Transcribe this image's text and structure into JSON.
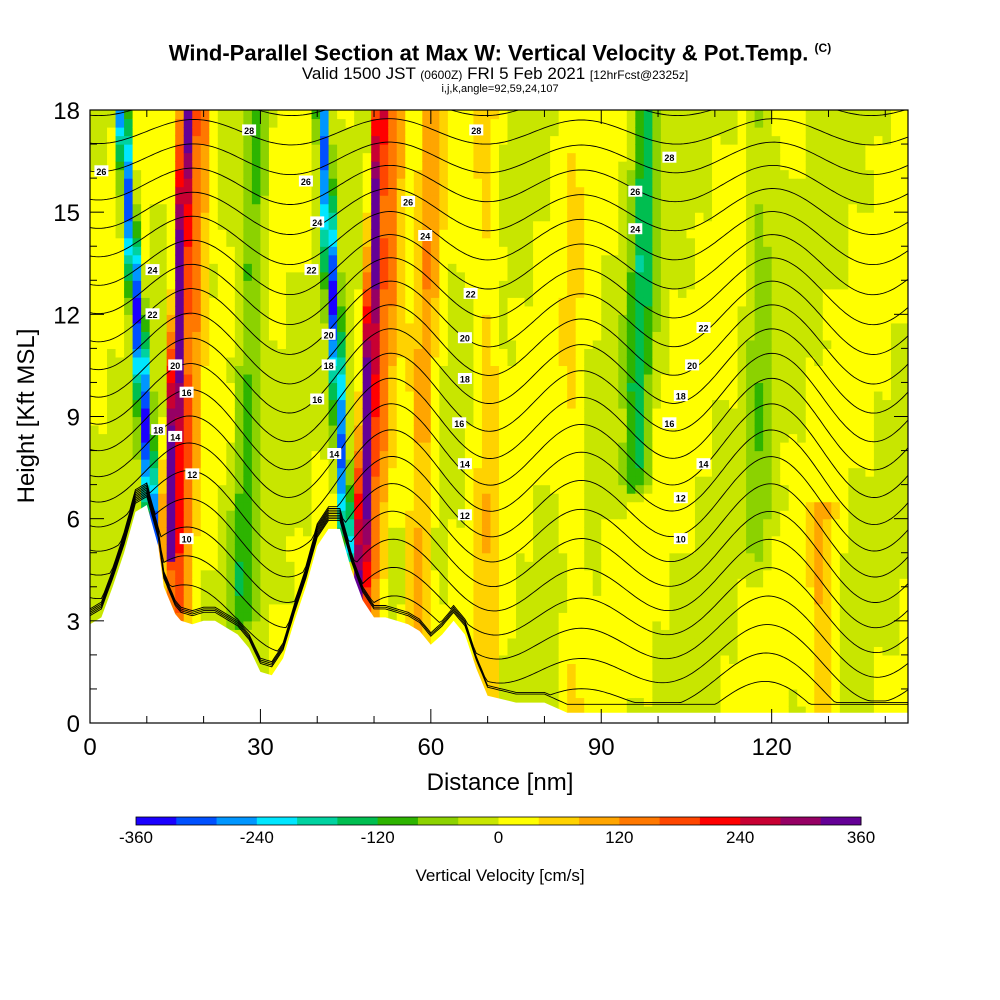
{
  "header": {
    "title_main": "Wind-Parallel Section at Max W: Vertical Velocity & Pot.Temp.",
    "title_mark": "(C)",
    "valid_a": "Valid 1500 JST",
    "valid_b": "(0600Z)",
    "valid_c": "FRI 5 Feb 2021",
    "valid_d": "[12hrFcst@2325z]",
    "params": "i,j,k,angle=92,59,24,107"
  },
  "chart_data": {
    "type": "heatmap",
    "title": "Wind-Parallel Section at Max W: Vertical Velocity & Pot.Temp.",
    "xlabel": "Distance [nm]",
    "ylabel": "Height [Kft MSL]",
    "xlim": [
      0,
      144
    ],
    "ylim": [
      0,
      18
    ],
    "x_ticks": [
      0,
      30,
      60,
      90,
      120
    ],
    "y_ticks": [
      0,
      3,
      6,
      9,
      12,
      15,
      18
    ],
    "colorbar": {
      "label": "Vertical Velocity [cm/s]",
      "min": -360,
      "max": 360,
      "step": 40,
      "tick_labels": [
        "-360",
        "-240",
        "-120",
        "0",
        "120",
        "240",
        "360"
      ],
      "colors": [
        "#1a00ff",
        "#0050ff",
        "#0096ff",
        "#00e6ff",
        "#00d2a0",
        "#00be50",
        "#2db400",
        "#8cd200",
        "#c8e600",
        "#ffff00",
        "#ffd200",
        "#ffa500",
        "#ff7800",
        "#ff4600",
        "#ff0000",
        "#c80032",
        "#960064",
        "#640096"
      ]
    },
    "terrain_profile": [
      [
        0,
        2.9
      ],
      [
        2,
        3.1
      ],
      [
        4,
        4.0
      ],
      [
        6,
        5.0
      ],
      [
        8,
        6.2
      ],
      [
        10,
        6.4
      ],
      [
        12,
        5.2
      ],
      [
        13,
        4.0
      ],
      [
        14,
        3.6
      ],
      [
        15,
        3.2
      ],
      [
        16,
        3.0
      ],
      [
        18,
        2.9
      ],
      [
        20,
        3.0
      ],
      [
        22,
        3.0
      ],
      [
        24,
        2.8
      ],
      [
        26,
        2.6
      ],
      [
        28,
        2.2
      ],
      [
        30,
        1.5
      ],
      [
        32,
        1.4
      ],
      [
        34,
        1.9
      ],
      [
        36,
        3.0
      ],
      [
        38,
        4.0
      ],
      [
        40,
        5.2
      ],
      [
        42,
        5.7
      ],
      [
        44,
        5.7
      ],
      [
        46,
        4.5
      ],
      [
        48,
        3.6
      ],
      [
        50,
        3.1
      ],
      [
        52,
        3.1
      ],
      [
        54,
        3.0
      ],
      [
        56,
        2.9
      ],
      [
        58,
        2.7
      ],
      [
        60,
        2.3
      ],
      [
        62,
        2.6
      ],
      [
        64,
        3.0
      ],
      [
        66,
        2.6
      ],
      [
        68,
        1.6
      ],
      [
        70,
        0.8
      ],
      [
        75,
        0.6
      ],
      [
        80,
        0.6
      ],
      [
        84,
        0.3
      ],
      [
        90,
        0.3
      ],
      [
        100,
        0.3
      ],
      [
        110,
        0.3
      ],
      [
        120,
        0.3
      ],
      [
        130,
        0.3
      ],
      [
        140,
        0.3
      ],
      [
        144,
        0.3
      ]
    ],
    "velocity_features": [
      {
        "x": 11,
        "z_min": 5,
        "z_max": 18,
        "tilt_nm_per_kft": -0.45,
        "w": -320
      },
      {
        "x": 14,
        "z_min": 5,
        "z_max": 18,
        "tilt_nm_per_kft": 0.25,
        "w": 340
      },
      {
        "x": 16,
        "z_min": 3,
        "z_max": 18,
        "tilt_nm_per_kft": 0.3,
        "w": 160
      },
      {
        "x": 27,
        "z_min": 3,
        "z_max": 18,
        "tilt_nm_per_kft": 0.2,
        "w": -100
      },
      {
        "x": 45,
        "z_min": 5,
        "z_max": 18,
        "tilt_nm_per_kft": -0.35,
        "w": -300
      },
      {
        "x": 48,
        "z_min": 3,
        "z_max": 18,
        "tilt_nm_per_kft": 0.25,
        "w": 320
      },
      {
        "x": 50,
        "z_min": 3,
        "z_max": 18,
        "tilt_nm_per_kft": 0.3,
        "w": 140
      },
      {
        "x": 58,
        "z_min": 2,
        "z_max": 18,
        "tilt_nm_per_kft": 0.2,
        "w": 100
      },
      {
        "x": 96,
        "z_min": 7,
        "z_max": 18,
        "tilt_nm_per_kft": 0.15,
        "w": -140
      },
      {
        "x": 70,
        "z_min": 0,
        "z_max": 18,
        "tilt_nm_per_kft": 0,
        "w": 60
      },
      {
        "x": 85,
        "z_min": 0,
        "z_max": 18,
        "tilt_nm_per_kft": 0,
        "w": 40
      },
      {
        "x": 129,
        "z_min": 0,
        "z_max": 6,
        "tilt_nm_per_kft": 0,
        "w": 80
      },
      {
        "x": 118,
        "z_min": 5,
        "z_max": 18,
        "tilt_nm_per_kft": 0,
        "w": -60
      }
    ],
    "isentrope_labels": [
      {
        "text": "26",
        "x": 2,
        "z": 16.2
      },
      {
        "text": "28",
        "x": 28,
        "z": 17.4
      },
      {
        "text": "26",
        "x": 38,
        "z": 15.9
      },
      {
        "text": "26",
        "x": 56,
        "z": 15.3
      },
      {
        "text": "28",
        "x": 68,
        "z": 17.4
      },
      {
        "text": "28",
        "x": 102,
        "z": 16.6
      },
      {
        "text": "26",
        "x": 96,
        "z": 15.6
      },
      {
        "text": "24",
        "x": 40,
        "z": 14.7
      },
      {
        "text": "24",
        "x": 59,
        "z": 14.3
      },
      {
        "text": "24",
        "x": 96,
        "z": 14.5
      },
      {
        "text": "24",
        "x": 11,
        "z": 13.3
      },
      {
        "text": "22",
        "x": 39,
        "z": 13.3
      },
      {
        "text": "22",
        "x": 67,
        "z": 12.6
      },
      {
        "text": "22",
        "x": 108,
        "z": 11.6
      },
      {
        "text": "22",
        "x": 11,
        "z": 12.0
      },
      {
        "text": "20",
        "x": 42,
        "z": 11.4
      },
      {
        "text": "20",
        "x": 66,
        "z": 11.3
      },
      {
        "text": "20",
        "x": 106,
        "z": 10.5
      },
      {
        "text": "20",
        "x": 15,
        "z": 10.5
      },
      {
        "text": "18",
        "x": 42,
        "z": 10.5
      },
      {
        "text": "18",
        "x": 66,
        "z": 10.1
      },
      {
        "text": "18",
        "x": 104,
        "z": 9.6
      },
      {
        "text": "16",
        "x": 17,
        "z": 9.7
      },
      {
        "text": "16",
        "x": 40,
        "z": 9.5
      },
      {
        "text": "16",
        "x": 65,
        "z": 8.8
      },
      {
        "text": "16",
        "x": 102,
        "z": 8.8
      },
      {
        "text": "18",
        "x": 12,
        "z": 8.6
      },
      {
        "text": "14",
        "x": 15,
        "z": 8.4
      },
      {
        "text": "14",
        "x": 43,
        "z": 7.9
      },
      {
        "text": "14",
        "x": 66,
        "z": 7.6
      },
      {
        "text": "14",
        "x": 108,
        "z": 7.6
      },
      {
        "text": "12",
        "x": 18,
        "z": 7.3
      },
      {
        "text": "12",
        "x": 66,
        "z": 6.1
      },
      {
        "text": "12",
        "x": 104,
        "z": 6.6
      },
      {
        "text": "10",
        "x": 17,
        "z": 5.4
      },
      {
        "text": "10",
        "x": 104,
        "z": 5.4
      }
    ],
    "grid": false,
    "legend": "bottom colorbar"
  }
}
